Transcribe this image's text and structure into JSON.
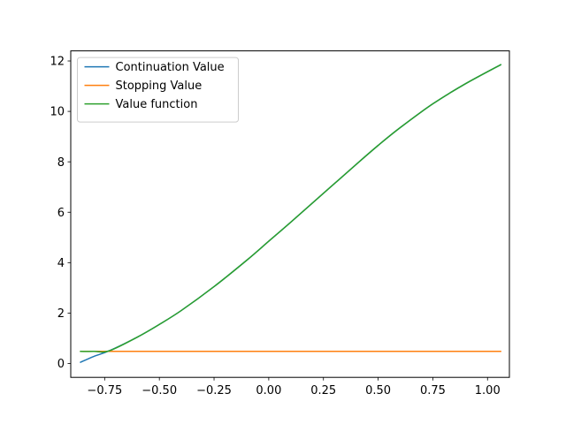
{
  "chart_data": {
    "type": "line",
    "title": "",
    "xlabel": "",
    "ylabel": "",
    "xlim": [
      -0.905,
      1.1
    ],
    "ylim": [
      -0.55,
      12.4
    ],
    "xticks": [
      -0.75,
      -0.5,
      -0.25,
      0.0,
      0.25,
      0.5,
      0.75,
      1.0
    ],
    "xtick_labels": [
      "−0.75",
      "−0.50",
      "−0.25",
      "0.00",
      "0.25",
      "0.50",
      "0.75",
      "1.00"
    ],
    "yticks": [
      0,
      2,
      4,
      6,
      8,
      10,
      12
    ],
    "ytick_labels": [
      "0",
      "2",
      "4",
      "6",
      "8",
      "10",
      "12"
    ],
    "grid": false,
    "legend_position": "upper-left",
    "series": [
      {
        "name": "Continuation Value",
        "color": "#1f77b4",
        "x": [
          -0.86,
          -0.8,
          -0.73,
          -0.6,
          -0.5,
          -0.4,
          -0.25,
          -0.1,
          0.0,
          0.1,
          0.25,
          0.4,
          0.5,
          0.6,
          0.75,
          0.9,
          1.06
        ],
        "y": [
          0.05,
          0.28,
          0.5,
          1.05,
          1.55,
          2.1,
          3.05,
          4.1,
          4.85,
          5.6,
          6.75,
          7.9,
          8.65,
          9.35,
          10.3,
          11.1,
          11.85
        ]
      },
      {
        "name": "Stopping Value",
        "color": "#ff7f0e",
        "x": [
          -0.86,
          1.06
        ],
        "y": [
          0.48,
          0.48
        ]
      },
      {
        "name": "Value function",
        "color": "#2ca02c",
        "x": [
          -0.86,
          -0.8,
          -0.73,
          -0.6,
          -0.5,
          -0.4,
          -0.25,
          -0.1,
          0.0,
          0.1,
          0.25,
          0.4,
          0.5,
          0.6,
          0.75,
          0.9,
          1.06
        ],
        "y": [
          0.48,
          0.48,
          0.5,
          1.05,
          1.55,
          2.1,
          3.05,
          4.1,
          4.85,
          5.6,
          6.75,
          7.9,
          8.65,
          9.35,
          10.3,
          11.1,
          11.85
        ]
      }
    ]
  }
}
